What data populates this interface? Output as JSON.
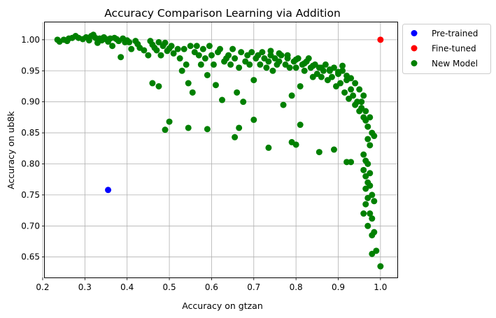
{
  "chart_data": {
    "type": "scatter",
    "title": "Accuracy Comparison Learning via Addition",
    "xlabel": "Accuracy on gtzan",
    "ylabel": "Accuracy on ub8k",
    "xlim": [
      0.205,
      1.04
    ],
    "ylim": [
      0.617,
      1.028
    ],
    "x_ticks": [
      "0.2",
      "0.3",
      "0.4",
      "0.5",
      "0.6",
      "0.7",
      "0.8",
      "0.9",
      "1.0"
    ],
    "y_ticks": [
      "0.65",
      "0.70",
      "0.75",
      "0.80",
      "0.85",
      "0.90",
      "0.95",
      "1.00"
    ],
    "grid": true,
    "legend_position": "outside-top-right",
    "series": [
      {
        "name": "Pre-trained",
        "color": "#0000ff",
        "points": [
          [
            0.355,
            0.758
          ]
        ]
      },
      {
        "name": "Fine-tuned",
        "color": "#ff0000",
        "points": [
          [
            1.0,
            1.0
          ]
        ]
      },
      {
        "name": "New Model",
        "color": "#008000",
        "points": [
          [
            0.235,
            1.0
          ],
          [
            0.24,
            0.997
          ],
          [
            0.25,
            1.0
          ],
          [
            0.258,
            0.998
          ],
          [
            0.262,
            1.002
          ],
          [
            0.27,
            1.003
          ],
          [
            0.278,
            1.006
          ],
          [
            0.285,
            1.003
          ],
          [
            0.295,
            1.001
          ],
          [
            0.303,
            1.004
          ],
          [
            0.31,
            0.999
          ],
          [
            0.315,
            1.006
          ],
          [
            0.32,
            1.008
          ],
          [
            0.325,
            1.003
          ],
          [
            0.33,
            0.995
          ],
          [
            0.335,
            1.002
          ],
          [
            0.34,
            0.999
          ],
          [
            0.345,
            1.004
          ],
          [
            0.35,
            1.001
          ],
          [
            0.355,
            0.997
          ],
          [
            0.36,
            1.002
          ],
          [
            0.365,
            0.99
          ],
          [
            0.37,
            1.003
          ],
          [
            0.375,
            1.001
          ],
          [
            0.38,
            0.998
          ],
          [
            0.385,
            0.972
          ],
          [
            0.39,
            1.002
          ],
          [
            0.395,
            0.996
          ],
          [
            0.4,
            0.999
          ],
          [
            0.405,
            0.996
          ],
          [
            0.41,
            0.985
          ],
          [
            0.42,
            0.998
          ],
          [
            0.425,
            0.993
          ],
          [
            0.43,
            0.987
          ],
          [
            0.44,
            0.983
          ],
          [
            0.45,
            0.975
          ],
          [
            0.455,
            0.998
          ],
          [
            0.46,
            0.992
          ],
          [
            0.465,
            0.987
          ],
          [
            0.47,
            0.983
          ],
          [
            0.475,
            0.996
          ],
          [
            0.48,
            0.975
          ],
          [
            0.485,
            0.99
          ],
          [
            0.49,
            0.995
          ],
          [
            0.495,
            0.982
          ],
          [
            0.5,
            0.986
          ],
          [
            0.505,
            0.99
          ],
          [
            0.51,
            0.978
          ],
          [
            0.52,
            0.985
          ],
          [
            0.525,
            0.97
          ],
          [
            0.53,
            0.95
          ],
          [
            0.535,
            0.985
          ],
          [
            0.54,
            0.96
          ],
          [
            0.545,
            0.93
          ],
          [
            0.55,
            0.99
          ],
          [
            0.555,
            0.915
          ],
          [
            0.56,
            0.98
          ],
          [
            0.565,
            0.99
          ],
          [
            0.57,
            0.975
          ],
          [
            0.575,
            0.96
          ],
          [
            0.58,
            0.985
          ],
          [
            0.585,
            0.97
          ],
          [
            0.59,
            0.943
          ],
          [
            0.595,
            0.99
          ],
          [
            0.6,
            0.975
          ],
          [
            0.605,
            0.96
          ],
          [
            0.61,
            0.927
          ],
          [
            0.615,
            0.98
          ],
          [
            0.62,
            0.985
          ],
          [
            0.625,
            0.903
          ],
          [
            0.63,
            0.965
          ],
          [
            0.635,
            0.97
          ],
          [
            0.64,
            0.975
          ],
          [
            0.645,
            0.96
          ],
          [
            0.65,
            0.985
          ],
          [
            0.655,
            0.97
          ],
          [
            0.66,
            0.915
          ],
          [
            0.665,
            0.955
          ],
          [
            0.67,
            0.98
          ],
          [
            0.675,
            0.9
          ],
          [
            0.68,
            0.965
          ],
          [
            0.685,
            0.975
          ],
          [
            0.69,
            0.96
          ],
          [
            0.695,
            0.98
          ],
          [
            0.7,
            0.935
          ],
          [
            0.705,
            0.97
          ],
          [
            0.71,
            0.975
          ],
          [
            0.715,
            0.96
          ],
          [
            0.72,
            0.98
          ],
          [
            0.725,
            0.97
          ],
          [
            0.73,
            0.955
          ],
          [
            0.735,
            0.965
          ],
          [
            0.74,
            0.975
          ],
          [
            0.745,
            0.95
          ],
          [
            0.75,
            0.97
          ],
          [
            0.755,
            0.96
          ],
          [
            0.76,
            0.965
          ],
          [
            0.765,
            0.975
          ],
          [
            0.77,
            0.895
          ],
          [
            0.775,
            0.96
          ],
          [
            0.78,
            0.97
          ],
          [
            0.785,
            0.955
          ],
          [
            0.79,
            0.91
          ],
          [
            0.795,
            0.965
          ],
          [
            0.8,
            0.955
          ],
          [
            0.805,
            0.97
          ],
          [
            0.81,
            0.925
          ],
          [
            0.815,
            0.96
          ],
          [
            0.82,
            0.95
          ],
          [
            0.825,
            0.965
          ],
          [
            0.83,
            0.97
          ],
          [
            0.835,
            0.955
          ],
          [
            0.84,
            0.94
          ],
          [
            0.845,
            0.96
          ],
          [
            0.85,
            0.945
          ],
          [
            0.855,
            0.955
          ],
          [
            0.86,
            0.94
          ],
          [
            0.865,
            0.95
          ],
          [
            0.87,
            0.96
          ],
          [
            0.875,
            0.935
          ],
          [
            0.88,
            0.95
          ],
          [
            0.885,
            0.94
          ],
          [
            0.89,
            0.955
          ],
          [
            0.895,
            0.925
          ],
          [
            0.9,
            0.945
          ],
          [
            0.905,
            0.93
          ],
          [
            0.91,
            0.95
          ],
          [
            0.915,
            0.915
          ],
          [
            0.92,
            0.935
          ],
          [
            0.925,
            0.905
          ],
          [
            0.93,
            0.92
          ],
          [
            0.935,
            0.91
          ],
          [
            0.94,
            0.895
          ],
          [
            0.945,
            0.9
          ],
          [
            0.95,
            0.885
          ],
          [
            0.955,
            0.89
          ],
          [
            0.96,
            0.875
          ],
          [
            0.965,
            0.87
          ],
          [
            0.97,
            0.86
          ],
          [
            0.975,
            0.875
          ],
          [
            0.98,
            0.85
          ],
          [
            0.985,
            0.845
          ],
          [
            0.46,
            0.93
          ],
          [
            0.475,
            0.925
          ],
          [
            0.49,
            0.855
          ],
          [
            0.5,
            0.868
          ],
          [
            0.545,
            0.858
          ],
          [
            0.59,
            0.856
          ],
          [
            0.655,
            0.843
          ],
          [
            0.665,
            0.858
          ],
          [
            0.7,
            0.871
          ],
          [
            0.735,
            0.826
          ],
          [
            0.79,
            0.835
          ],
          [
            0.8,
            0.831
          ],
          [
            0.81,
            0.863
          ],
          [
            0.855,
            0.819
          ],
          [
            0.89,
            0.823
          ],
          [
            0.92,
            0.803
          ],
          [
            0.93,
            0.803
          ],
          [
            0.96,
            0.79
          ],
          [
            0.965,
            0.78
          ],
          [
            0.97,
            0.8
          ],
          [
            0.975,
            0.765
          ],
          [
            0.98,
            0.75
          ],
          [
            0.985,
            0.74
          ],
          [
            0.96,
            0.72
          ],
          [
            0.965,
            0.735
          ],
          [
            0.97,
            0.7
          ],
          [
            0.975,
            0.72
          ],
          [
            0.98,
            0.685
          ],
          [
            0.98,
            0.655
          ],
          [
            1.0,
            0.635
          ],
          [
            0.74,
            0.982
          ],
          [
            0.76,
            0.978
          ],
          [
            0.78,
            0.975
          ],
          [
            0.8,
            0.968
          ],
          [
            0.82,
            0.962
          ],
          [
            0.84,
            0.958
          ],
          [
            0.86,
            0.955
          ],
          [
            0.88,
            0.952
          ],
          [
            0.9,
            0.948
          ],
          [
            0.91,
            0.958
          ],
          [
            0.92,
            0.942
          ],
          [
            0.93,
            0.938
          ],
          [
            0.94,
            0.93
          ],
          [
            0.95,
            0.92
          ],
          [
            0.96,
            0.91
          ],
          [
            0.955,
            0.9
          ],
          [
            0.965,
            0.885
          ],
          [
            0.97,
            0.84
          ],
          [
            0.975,
            0.83
          ],
          [
            0.96,
            0.815
          ],
          [
            0.965,
            0.805
          ],
          [
            0.97,
            0.77
          ],
          [
            0.975,
            0.785
          ],
          [
            0.965,
            0.76
          ],
          [
            0.97,
            0.745
          ],
          [
            0.98,
            0.712
          ],
          [
            0.985,
            0.69
          ],
          [
            0.99,
            0.66
          ]
        ]
      }
    ]
  }
}
